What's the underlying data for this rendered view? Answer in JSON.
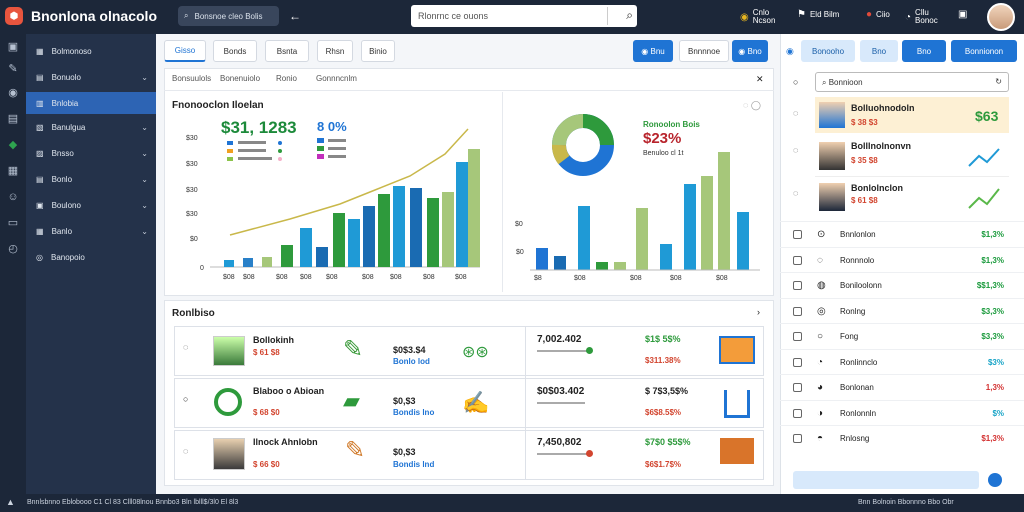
{
  "app": {
    "title": "Bnonlona olnacolo",
    "logo_glyph": "⬢"
  },
  "topbar": {
    "tab_label": "Bonsnoe cleo Bolis",
    "search_text": "Rlonrnc ce ouons",
    "actions": [
      {
        "label": "Cnlo\nNcson",
        "icon": "coin-icon",
        "glyph": "◉"
      },
      {
        "label": "Eld Bilm",
        "icon": "flag-icon",
        "glyph": "⚑"
      },
      {
        "label": "Ciio",
        "icon": "bell-icon",
        "glyph": "🔔"
      },
      {
        "label": "Cllu\nBonoc",
        "icon": "chart-icon",
        "glyph": "◔"
      },
      {
        "label": "",
        "icon": "calendar-icon",
        "glyph": "▣"
      }
    ]
  },
  "sidebar": {
    "items": [
      {
        "label": "Bolmonoso",
        "icon": "grid-icon",
        "glyph": "▦"
      },
      {
        "label": "Bonuolo",
        "icon": "shop-icon",
        "glyph": "▤"
      },
      {
        "label": "Bnlobia",
        "icon": "table-icon",
        "glyph": "▥"
      },
      {
        "label": "Banulgua",
        "icon": "doc-icon",
        "glyph": "▧"
      },
      {
        "label": "Bnsso",
        "icon": "box-icon",
        "glyph": "▨"
      },
      {
        "label": "Bonlo",
        "icon": "list-icon",
        "glyph": "▤"
      },
      {
        "label": "Boulono",
        "icon": "folder-icon",
        "glyph": "▣"
      },
      {
        "label": "Banlo",
        "icon": "layer-icon",
        "glyph": "▦"
      },
      {
        "label": "Banopoio",
        "icon": "globe-icon",
        "glyph": "◎"
      }
    ]
  },
  "main": {
    "tabs": [
      "Gisso",
      "Bonds",
      "Bsnta",
      "Rhsn",
      "Binio"
    ],
    "buttons": [
      "Bnu",
      "Bnnnnoe",
      "Bno"
    ],
    "subtabs": [
      "Bonsuulols",
      "Bonenuiolo",
      "Ronio",
      "Gonnncnlm"
    ],
    "chart1": {
      "title": "Fnonooclon Iloelan",
      "big_value": "$31, 1283",
      "pct": "8 0%"
    },
    "chart2": {
      "label": "Ronoolon Bois",
      "value": "$23%",
      "sub": "Benuloo cl 1t"
    },
    "list_title": "Ronlbiso",
    "rows": [
      {
        "name": "Bollokinh",
        "sub": "$ 61 $8",
        "amount": "$0$3.$4",
        "amount_sub": "Bonlo lod",
        "total": "7,002.402",
        "change": "$1$ 5$%",
        "change_sub": "$311.38%"
      },
      {
        "name": "Blaboo o Abioan",
        "sub": "$ 68 $0",
        "amount": "$0,$3",
        "amount_sub": "Bondis lno",
        "total": "$0$03.402",
        "change": "$ 7$3,5$%",
        "change_sub": "$6$8.5$%"
      },
      {
        "name": "Ilnock Ahnlobn",
        "sub": "$ 66 $0",
        "amount": "$0,$3",
        "amount_sub": "Bondis lnd",
        "total": "7,450,802",
        "change": "$7$0 $5$%",
        "change_sub": "$6$1.7$%"
      }
    ]
  },
  "right": {
    "buttons": [
      "Bonooho",
      "Bno",
      "Bno",
      "Bonnionon"
    ],
    "search_text": "Bonnioon",
    "cards": [
      {
        "name": "Bolluohnodoln",
        "sub": "$ 38 $3",
        "value": "$63"
      },
      {
        "name": "Bolllnolnonvn",
        "sub": "$ 35 $8"
      },
      {
        "name": "Bonlolnclon",
        "sub": "$ 61 $8"
      }
    ],
    "rows": [
      {
        "name": "Bnnlonlon",
        "val": "$1,3%",
        "color": "#1a9a3c",
        "icon": "⊙"
      },
      {
        "name": "Ronnnolo",
        "val": "$1,3%",
        "color": "#1a9a3c",
        "icon": "◌"
      },
      {
        "name": "Boniloolonn",
        "val": "$$1,3%",
        "color": "#1a9a3c",
        "icon": "◍"
      },
      {
        "name": "Ronlng",
        "val": "$3,3%",
        "color": "#1a9a3c",
        "icon": "◎"
      },
      {
        "name": "Fong",
        "val": "$3,3%",
        "color": "#1a9a3c",
        "icon": "○"
      },
      {
        "name": "Ronlinnclo",
        "val": "$3%",
        "color": "#16a3c6",
        "icon": "◔"
      },
      {
        "name": "Bonlonan",
        "val": "1,3%",
        "color": "#d33030",
        "icon": "◕"
      },
      {
        "name": "Ronlonnln",
        "val": "$%",
        "color": "#16a3c6",
        "icon": "◑"
      },
      {
        "name": "Rnlosng",
        "val": "$1,3%",
        "color": "#d33030",
        "icon": "◓"
      }
    ]
  },
  "status": {
    "left": "Bnnlsbnno Eblobooo C1 Cl 83 Clll08lnou Bnnbo3 Bln lblll$/3l0 El 8l3",
    "right": "Bnn Bolnoin Bbonnno Bbo Obr"
  }
}
